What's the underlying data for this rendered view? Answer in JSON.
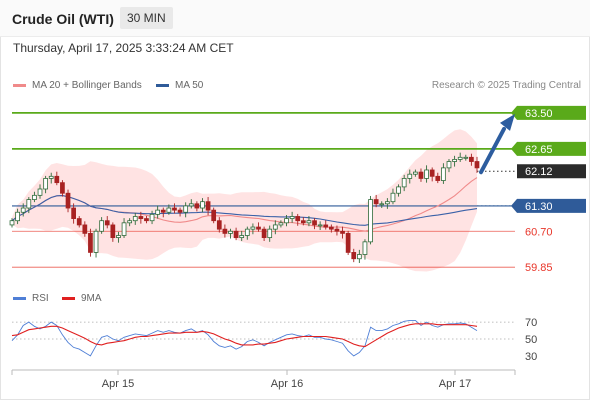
{
  "header": {
    "title": "Crude Oil (WTI)",
    "timeframe": "30 MIN"
  },
  "timestamp": "Thursday, April 17, 2025 3:33:24 AM CET",
  "source": "Research © 2025 Trading Central",
  "legend": {
    "ma20": "MA 20 + Bollinger Bands",
    "ma50": "MA 50",
    "rsi": "RSI",
    "rsi_ma": "9MA"
  },
  "colors": {
    "green": "#5aaa1a",
    "red": "#e8362a",
    "blue": "#2f5b99",
    "band": "#ffd9d9",
    "ma20": "#f08a8a",
    "ma50": "#3a61a8",
    "rsi": "#4f7fd6",
    "rsi_ma": "#e02020",
    "up": "#2f6b3a",
    "down": "#a82222",
    "arrow": "#2d5d9f"
  },
  "chart_data": [
    {
      "type": "candlestick",
      "title": "Crude Oil (WTI)",
      "timeframe": "30 MIN",
      "x_ticks": [
        "Apr 15",
        "Apr 16",
        "Apr 17"
      ],
      "ylim": [
        59.5,
        63.9
      ],
      "current_price": 62.12,
      "levels": [
        {
          "label": "63.50",
          "value": 63.5,
          "kind": "resistance"
        },
        {
          "label": "62.65",
          "value": 62.65,
          "kind": "resistance"
        },
        {
          "label": "62.12",
          "value": 62.12,
          "kind": "current"
        },
        {
          "label": "61.30",
          "value": 61.3,
          "kind": "pivot"
        },
        {
          "label": "60.70",
          "value": 60.7,
          "kind": "support"
        },
        {
          "label": "59.85",
          "value": 59.85,
          "kind": "support"
        }
      ],
      "forecast_arrow": {
        "from": 62.12,
        "to": 63.5
      },
      "series_close": [
        60.95,
        61.15,
        61.25,
        61.45,
        61.55,
        61.7,
        61.95,
        62.0,
        61.85,
        61.6,
        61.25,
        61.0,
        60.85,
        60.65,
        60.2,
        60.7,
        60.95,
        60.85,
        60.55,
        60.6,
        60.9,
        60.95,
        61.05,
        61.0,
        60.95,
        61.1,
        61.2,
        61.15,
        61.25,
        61.2,
        61.15,
        61.3,
        61.35,
        61.25,
        61.4,
        61.2,
        60.95,
        60.75,
        60.65,
        60.7,
        60.55,
        60.6,
        60.75,
        60.8,
        60.75,
        60.55,
        60.75,
        60.85,
        60.9,
        61.0,
        61.05,
        60.95,
        60.9,
        60.95,
        60.85,
        60.85,
        60.8,
        60.75,
        60.7,
        60.65,
        60.2,
        60.05,
        60.15,
        60.45,
        61.45,
        61.35,
        61.35,
        61.4,
        61.6,
        61.75,
        61.95,
        62.05,
        62.1,
        61.95,
        62.15,
        62.0,
        61.9,
        62.2,
        62.35,
        62.4,
        62.45,
        62.45,
        62.35,
        62.2
      ]
    },
    {
      "type": "line",
      "title": "RSI",
      "series": [
        {
          "name": "RSI",
          "values": [
            48,
            55,
            66,
            70,
            65,
            62,
            65,
            70,
            66,
            55,
            46,
            40,
            38,
            34,
            30,
            42,
            52,
            54,
            50,
            48,
            52,
            54,
            56,
            55,
            54,
            57,
            60,
            58,
            60,
            58,
            57,
            60,
            62,
            58,
            60,
            55,
            47,
            42,
            40,
            42,
            38,
            41,
            47,
            49,
            46,
            42,
            46,
            49,
            52,
            55,
            56,
            54,
            53,
            55,
            52,
            52,
            50,
            49,
            47,
            45,
            36,
            30,
            34,
            42,
            64,
            60,
            60,
            62,
            66,
            68,
            71,
            72,
            72,
            66,
            70,
            66,
            64,
            67,
            68,
            68,
            69,
            68,
            64,
            60
          ]
        },
        {
          "name": "9MA",
          "values": [
            54,
            55,
            58,
            61,
            62,
            63,
            64,
            65,
            65,
            63,
            60,
            57,
            54,
            51,
            47,
            44,
            43,
            45,
            46,
            47,
            48,
            50,
            52,
            53,
            53,
            54,
            55,
            56,
            57,
            57,
            57,
            58,
            58,
            58,
            59,
            58,
            56,
            53,
            50,
            48,
            45,
            43,
            43,
            43,
            44,
            44,
            45,
            46,
            48,
            50,
            51,
            52,
            53,
            53,
            53,
            53,
            53,
            52,
            51,
            50,
            47,
            44,
            42,
            41,
            45,
            49,
            53,
            57,
            60,
            63,
            65,
            67,
            68,
            68,
            68,
            68,
            67,
            67,
            67,
            67,
            67,
            67,
            66,
            65
          ]
        }
      ],
      "y_ticks": [
        "70",
        "50",
        "30"
      ],
      "ylim": [
        18,
        82
      ]
    }
  ]
}
